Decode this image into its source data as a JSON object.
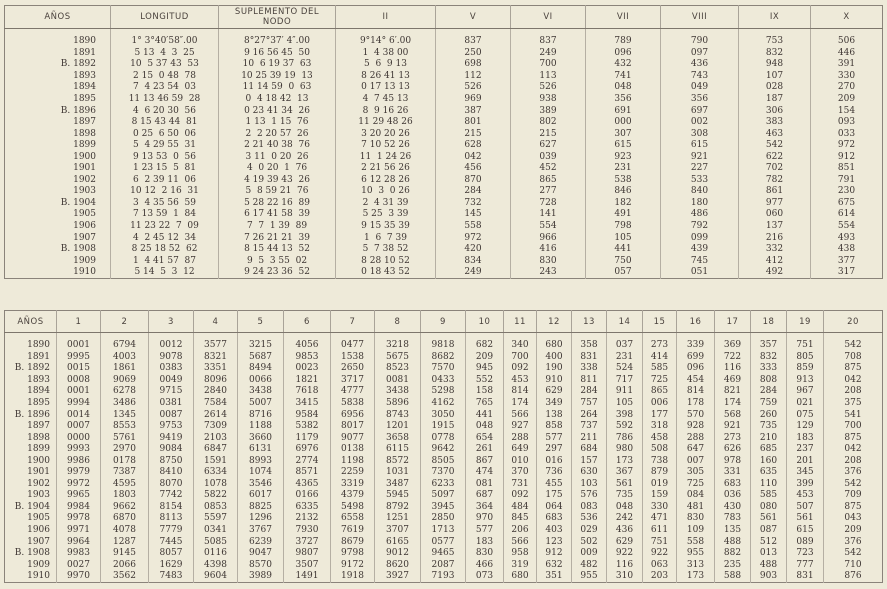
{
  "table1": {
    "headers": [
      "AÑOS",
      "LONGITUD",
      "SUPLEMENTO DEL NODO",
      "II",
      "V",
      "VI",
      "VII",
      "VIII",
      "IX",
      "X"
    ],
    "rows": [
      [
        "1890",
        "1° 3°40′58″.00",
        "8°27°37′ 4″.00",
        "9°14° 6′.00",
        "837",
        "837",
        "789",
        "790",
        "753",
        "506"
      ],
      [
        "1891",
        "5 13  4  3  25",
        "9 16 56 45  50",
        "1  4 38 00",
        "250",
        "249",
        "096",
        "097",
        "832",
        "446"
      ],
      [
        "B. 1892",
        "10  5 37 43  53",
        "10  6 19 37  63",
        "5  6  9 13",
        "698",
        "700",
        "432",
        "436",
        "948",
        "391"
      ],
      [
        "1893",
        "2 15  0 48  78",
        "10 25 39 19  13",
        "8 26 41 13",
        "112",
        "113",
        "741",
        "743",
        "107",
        "330"
      ],
      [
        "1894",
        "7  4 23 54  03",
        "11 14 59  0  63",
        "0 17 13 13",
        "526",
        "526",
        "048",
        "049",
        "028",
        "270"
      ],
      [
        "1895",
        "11 13 46 59  28",
        "0  4 18 42  13",
        "4  7 45 13",
        "969",
        "938",
        "356",
        "356",
        "187",
        "209"
      ],
      [
        "B. 1896",
        "4  6 20 30  56",
        "0 23 41 34  26",
        "8  9 16 26",
        "387",
        "389",
        "691",
        "697",
        "306",
        "154"
      ],
      [
        "1897",
        "8 15 43 44  81",
        "1 13  1 15  76",
        "11 29 48 26",
        "801",
        "802",
        "000",
        "002",
        "383",
        "093"
      ],
      [
        "1898",
        "0 25  6 50  06",
        "2  2 20 57  26",
        "3 20 20 26",
        "215",
        "215",
        "307",
        "308",
        "463",
        "033"
      ],
      [
        "1899",
        "5  4 29 55  31",
        "2 21 40 38  76",
        "7 10 52 26",
        "628",
        "627",
        "615",
        "615",
        "542",
        "972"
      ],
      [
        "1900",
        "9 13 53  0  56",
        "3 11  0 20  26",
        "11  1 24 26",
        "042",
        "039",
        "923",
        "921",
        "622",
        "912"
      ],
      [
        "1901",
        "1 23 15  5  81",
        "4  0 20  1  76",
        "2 21 56 26",
        "456",
        "452",
        "231",
        "227",
        "702",
        "851"
      ],
      [
        "1902",
        "6  2 39 11  06",
        "4 19 39 43  26",
        "6 12 28 26",
        "870",
        "865",
        "538",
        "533",
        "782",
        "791"
      ],
      [
        "1903",
        "10 12  2 16  31",
        "5  8 59 21  76",
        "10  3  0 26",
        "284",
        "277",
        "846",
        "840",
        "861",
        "230"
      ],
      [
        "B. 1904",
        "3  4 35 56  59",
        "5 28 22 16  89",
        "2  4 31 39",
        "732",
        "728",
        "182",
        "180",
        "977",
        "675"
      ],
      [
        "1905",
        "7 13 59  1  84",
        "6 17 41 58  39",
        "5 25  3 39",
        "145",
        "141",
        "491",
        "486",
        "060",
        "614"
      ],
      [
        "1906",
        "11 23 22  7  09",
        "7  7  1 39  89",
        "9 15 35 39",
        "558",
        "554",
        "798",
        "792",
        "137",
        "554"
      ],
      [
        "1907",
        "4  2 45 12  34",
        "7 26 21 21  39",
        "1  6  7 39",
        "972",
        "966",
        "105",
        "099",
        "216",
        "493"
      ],
      [
        "B. 1908",
        "8 25 18 52  62",
        "8 15 44 13  52",
        "5  7 38 52",
        "420",
        "416",
        "441",
        "439",
        "332",
        "438"
      ],
      [
        "1909",
        "1  4 41 57  87",
        "9  5  3 55  02",
        "8 28 10 52",
        "834",
        "830",
        "750",
        "745",
        "412",
        "377"
      ],
      [
        "1910",
        "5 14  5  3  12",
        "9 24 23 36  52",
        "0 18 43 52",
        "249",
        "243",
        "057",
        "051",
        "492",
        "317"
      ]
    ]
  },
  "table2": {
    "headers": [
      "AÑOS",
      "1",
      "2",
      "3",
      "4",
      "5",
      "6",
      "7",
      "8",
      "9",
      "10",
      "11",
      "12",
      "13",
      "14",
      "15",
      "16",
      "17",
      "18",
      "19",
      "20"
    ],
    "rows": [
      [
        "1890",
        "0001",
        "6794",
        "0012",
        "3577",
        "3215",
        "4056",
        "0477",
        "3218",
        "9818",
        "682",
        "340",
        "680",
        "358",
        "037",
        "273",
        "339",
        "369",
        "357",
        "751",
        "542"
      ],
      [
        "1891",
        "9995",
        "4003",
        "9078",
        "8321",
        "5687",
        "9853",
        "1538",
        "5675",
        "8682",
        "209",
        "700",
        "400",
        "831",
        "231",
        "414",
        "699",
        "722",
        "832",
        "805",
        "708"
      ],
      [
        "B. 1892",
        "0015",
        "1861",
        "0383",
        "3351",
        "8494",
        "0023",
        "2650",
        "8523",
        "7570",
        "945",
        "092",
        "190",
        "338",
        "524",
        "585",
        "096",
        "116",
        "333",
        "859",
        "875"
      ],
      [
        "1893",
        "0008",
        "9069",
        "0049",
        "8096",
        "0066",
        "1821",
        "3717",
        "0081",
        "0433",
        "552",
        "453",
        "910",
        "811",
        "717",
        "725",
        "454",
        "469",
        "808",
        "913",
        "042"
      ],
      [
        "1894",
        "0001",
        "6278",
        "9715",
        "2840",
        "3438",
        "7618",
        "4777",
        "3438",
        "5298",
        "158",
        "814",
        "629",
        "284",
        "911",
        "865",
        "814",
        "821",
        "284",
        "967",
        "208"
      ],
      [
        "1895",
        "9994",
        "3486",
        "0381",
        "7584",
        "5007",
        "3415",
        "5838",
        "5896",
        "4162",
        "765",
        "174",
        "349",
        "757",
        "105",
        "006",
        "178",
        "174",
        "759",
        "021",
        "375"
      ],
      [
        "B. 1896",
        "0014",
        "1345",
        "0087",
        "2614",
        "8716",
        "9584",
        "6956",
        "8743",
        "3050",
        "441",
        "566",
        "138",
        "264",
        "398",
        "177",
        "570",
        "568",
        "260",
        "075",
        "541"
      ],
      [
        "1897",
        "0007",
        "8553",
        "9753",
        "7309",
        "1188",
        "5382",
        "8017",
        "1201",
        "1915",
        "048",
        "927",
        "858",
        "737",
        "592",
        "318",
        "928",
        "921",
        "735",
        "129",
        "700"
      ],
      [
        "1898",
        "0000",
        "5761",
        "9419",
        "2103",
        "3660",
        "1179",
        "9077",
        "3658",
        "0778",
        "654",
        "288",
        "577",
        "211",
        "786",
        "458",
        "288",
        "273",
        "210",
        "183",
        "875"
      ],
      [
        "1899",
        "9993",
        "2970",
        "9084",
        "6847",
        "6131",
        "6976",
        "0138",
        "6115",
        "9642",
        "261",
        "649",
        "297",
        "684",
        "980",
        "508",
        "647",
        "626",
        "685",
        "237",
        "042"
      ],
      [
        "1900",
        "9986",
        "0178",
        "8750",
        "1591",
        "8993",
        "2774",
        "1198",
        "8572",
        "8505",
        "867",
        "010",
        "016",
        "157",
        "173",
        "738",
        "007",
        "978",
        "160",
        "201",
        "208"
      ],
      [
        "1901",
        "9979",
        "7387",
        "8410",
        "6334",
        "1074",
        "8571",
        "2259",
        "1031",
        "7370",
        "474",
        "370",
        "736",
        "630",
        "367",
        "879",
        "305",
        "331",
        "635",
        "345",
        "376"
      ],
      [
        "1902",
        "9972",
        "4595",
        "8070",
        "1078",
        "3546",
        "4365",
        "3319",
        "3487",
        "6233",
        "081",
        "731",
        "455",
        "103",
        "561",
        "019",
        "725",
        "683",
        "110",
        "399",
        "542"
      ],
      [
        "1903",
        "9965",
        "1803",
        "7742",
        "5822",
        "6017",
        "0166",
        "4379",
        "5945",
        "5097",
        "687",
        "092",
        "175",
        "576",
        "735",
        "159",
        "084",
        "036",
        "585",
        "453",
        "709"
      ],
      [
        "B. 1904",
        "9984",
        "9662",
        "8154",
        "0853",
        "8825",
        "6335",
        "5498",
        "8792",
        "3945",
        "364",
        "484",
        "064",
        "083",
        "048",
        "330",
        "481",
        "430",
        "080",
        "507",
        "875"
      ],
      [
        "1905",
        "9978",
        "6870",
        "8113",
        "5597",
        "1296",
        "2132",
        "6558",
        "1251",
        "2850",
        "970",
        "845",
        "683",
        "536",
        "242",
        "471",
        "830",
        "783",
        "561",
        "561",
        "043"
      ],
      [
        "1906",
        "9971",
        "4078",
        "7779",
        "0341",
        "3767",
        "7930",
        "7619",
        "3707",
        "1713",
        "577",
        "206",
        "403",
        "029",
        "436",
        "611",
        "109",
        "135",
        "087",
        "615",
        "209"
      ],
      [
        "1907",
        "9964",
        "1287",
        "7445",
        "5085",
        "6239",
        "3727",
        "8679",
        "6165",
        "0577",
        "183",
        "566",
        "123",
        "502",
        "629",
        "751",
        "558",
        "488",
        "512",
        "089",
        "376"
      ],
      [
        "B. 1908",
        "9983",
        "9145",
        "8057",
        "0116",
        "9047",
        "9807",
        "9798",
        "9012",
        "9465",
        "830",
        "958",
        "912",
        "009",
        "922",
        "922",
        "955",
        "882",
        "013",
        "723",
        "542"
      ],
      [
        "1909",
        "0027",
        "2066",
        "1629",
        "4398",
        "8570",
        "3507",
        "9172",
        "8620",
        "2087",
        "466",
        "319",
        "632",
        "482",
        "116",
        "063",
        "313",
        "235",
        "488",
        "777",
        "710"
      ],
      [
        "1910",
        "9970",
        "3562",
        "7483",
        "9604",
        "3989",
        "1491",
        "1918",
        "3927",
        "7193",
        "073",
        "680",
        "351",
        "955",
        "310",
        "203",
        "173",
        "588",
        "903",
        "831",
        "876"
      ]
    ]
  }
}
